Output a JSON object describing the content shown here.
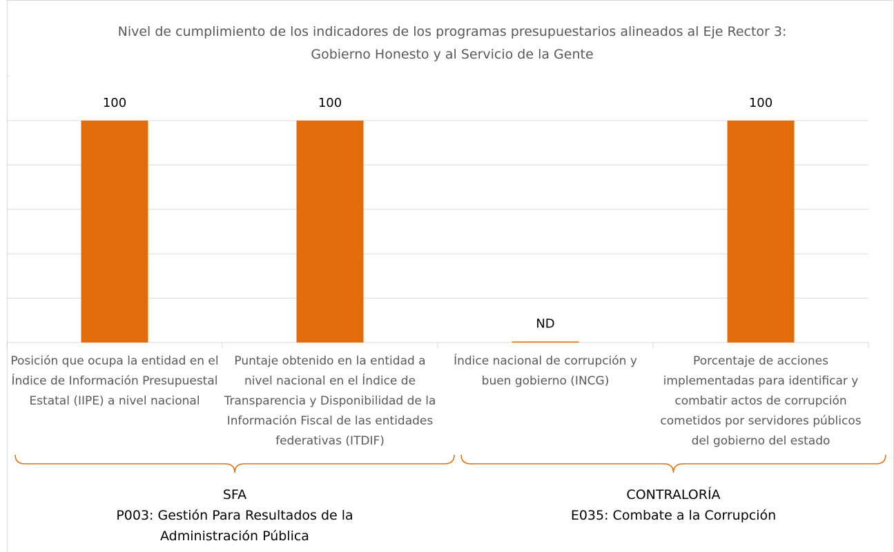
{
  "chart_data": {
    "type": "bar",
    "title": "Nivel de cumplimiento de los indicadores de los programas presupuestarios alineados al Eje Rector 3: Gobierno Honesto y al Servicio de la Gente",
    "categories": [
      "Posición que ocupa la entidad en el Índice de Información Presupuestal Estatal (IIPE) a nivel nacional",
      "Puntaje obtenido en la entidad a nivel nacional en el Índice de Transparencia y Disponibilidad de la Información Fiscal de las entidades federativas (ITDIF)",
      "Índice nacional de corrupción y buen gobierno (INCG)",
      "Porcentaje de acciones implementadas para identificar y combatir actos de corrupción cometidos por servidores públicos del gobierno del estado"
    ],
    "values": [
      100,
      100,
      null,
      100
    ],
    "value_labels": [
      "100",
      "100",
      "ND",
      "100"
    ],
    "color": "#e36c0a",
    "ylim": [
      0,
      100
    ],
    "yticks": [
      0,
      20,
      40,
      60,
      80,
      100
    ],
    "grid": true,
    "groups": [
      {
        "name": "SFA",
        "label": "P003: Gestión Para Resultados de la Administración Pública"
      },
      {
        "name": "CONTRALORÍA",
        "label": "E035: Combate a la Corrupción"
      }
    ]
  }
}
